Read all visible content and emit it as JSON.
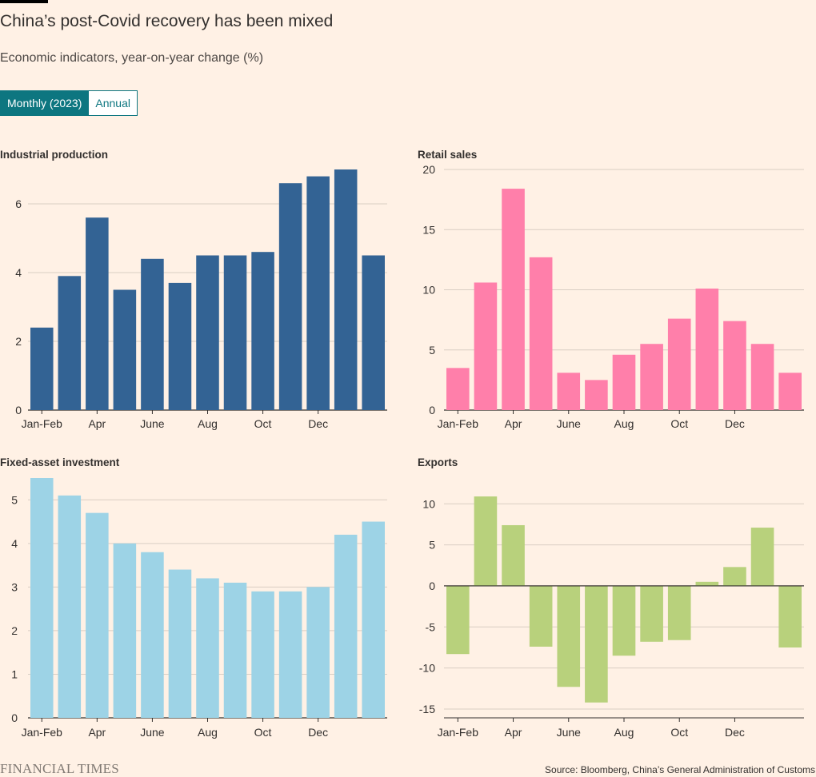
{
  "title": "China’s post-Covid recovery has been mixed",
  "subtitle": "Economic indicators, year-on-year change (%)",
  "toggle": {
    "active_label": "Monthly (2023)",
    "inactive_label": "Annual"
  },
  "footer": {
    "logo": "FINANCIAL TIMES",
    "source": "Source: Bloomberg, China’s General Administration of Customs"
  },
  "chart_data": [
    {
      "type": "bar",
      "title": "Industrial production",
      "color": "#336394",
      "x_tick_labels": [
        "Jan-Feb",
        "",
        "Apr",
        "",
        "June",
        "",
        "Aug",
        "",
        "Oct",
        "",
        "Dec",
        "",
        ""
      ],
      "values": [
        2.4,
        3.9,
        5.6,
        3.5,
        4.4,
        3.7,
        4.5,
        4.5,
        4.6,
        6.6,
        6.8,
        7.0,
        4.5
      ],
      "ylim": [
        0,
        7
      ],
      "yticks": [
        0,
        2,
        4,
        6
      ],
      "grid": true
    },
    {
      "type": "bar",
      "title": "Retail sales",
      "color": "#FF7FAA",
      "x_tick_labels": [
        "Jan-Feb",
        "",
        "Apr",
        "",
        "June",
        "",
        "Aug",
        "",
        "Oct",
        "",
        "Dec",
        "",
        ""
      ],
      "values": [
        3.5,
        10.6,
        18.4,
        12.7,
        3.1,
        2.5,
        4.6,
        5.5,
        7.6,
        10.1,
        7.4,
        5.5,
        3.1
      ],
      "ylim": [
        0,
        20
      ],
      "yticks": [
        0,
        5,
        10,
        15,
        20
      ],
      "grid": true
    },
    {
      "type": "bar",
      "title": "Fixed-asset investment",
      "color": "#9DD3E6",
      "x_tick_labels": [
        "Jan-Feb",
        "",
        "Apr",
        "",
        "June",
        "",
        "Aug",
        "",
        "Oct",
        "",
        "Dec",
        "",
        ""
      ],
      "values": [
        5.5,
        5.1,
        4.7,
        4.0,
        3.8,
        3.4,
        3.2,
        3.1,
        2.9,
        2.9,
        3.0,
        4.2,
        4.5
      ],
      "ylim": [
        0,
        5.5
      ],
      "yticks": [
        0,
        1,
        2,
        3,
        4,
        5
      ],
      "grid": true
    },
    {
      "type": "bar",
      "title": "Exports",
      "color": "#B8D17C",
      "x_tick_labels": [
        "Jan-Feb",
        "",
        "Apr",
        "",
        "June",
        "",
        "Aug",
        "",
        "Oct",
        "",
        "Dec",
        "",
        ""
      ],
      "values": [
        -8.3,
        10.9,
        7.4,
        -7.4,
        -12.3,
        -14.2,
        -8.5,
        -6.8,
        -6.6,
        0.5,
        2.3,
        7.1,
        -7.5
      ],
      "ylim": [
        -15,
        11
      ],
      "yticks": [
        -15,
        -10,
        -5,
        0,
        5,
        10
      ],
      "ytick_labels": [
        "-15",
        "-10",
        "-5",
        "0",
        "5",
        "10"
      ],
      "grid": true
    }
  ]
}
